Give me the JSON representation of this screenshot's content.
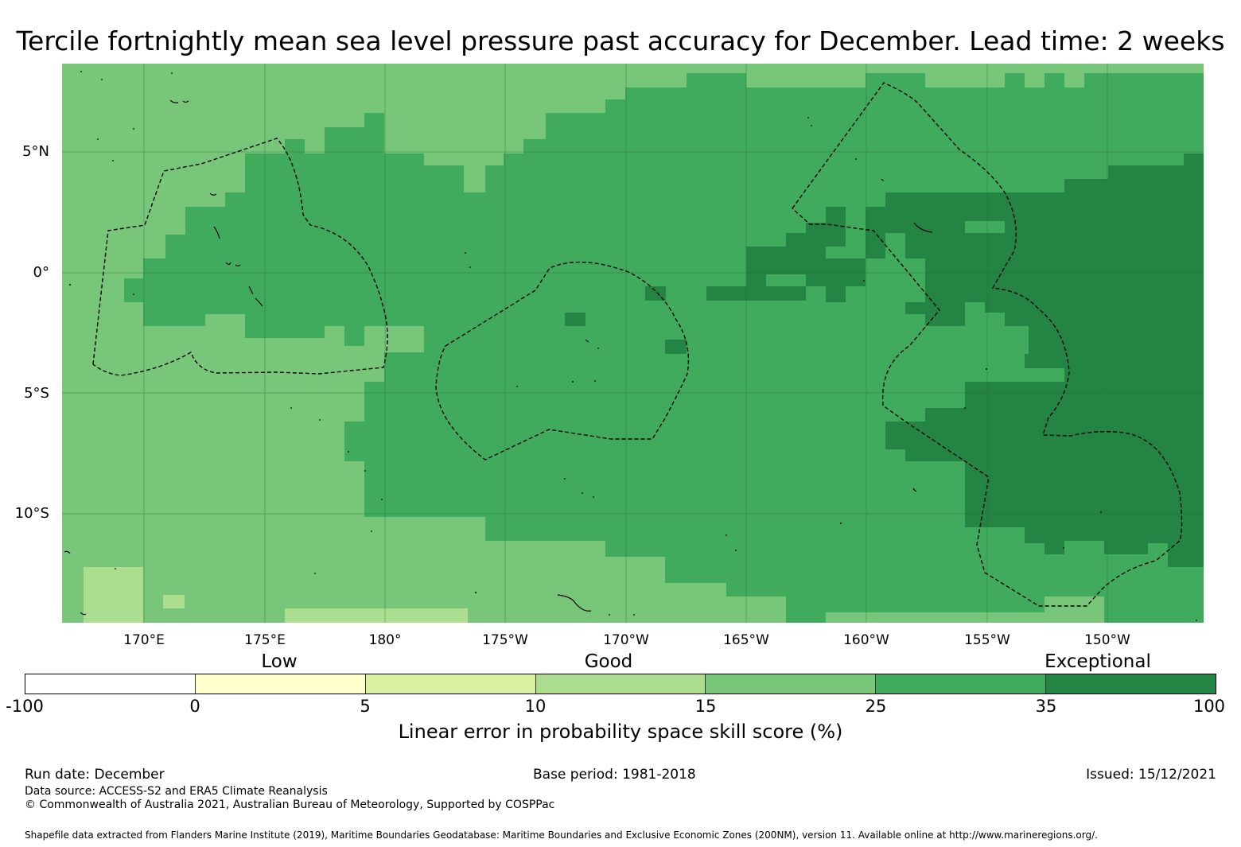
{
  "title": "Tercile fortnightly mean sea level pressure past accuracy for December. Lead time: 2 weeks",
  "map": {
    "lat_labels": [
      "5°N",
      "0°",
      "5°S",
      "10°S"
    ],
    "lon_labels": [
      "170°E",
      "175°E",
      "180°",
      "175°W",
      "170°W",
      "165°W",
      "160°W",
      "155°W",
      "150°W"
    ]
  },
  "colorbar": {
    "category_labels": [
      "Low",
      "Good",
      "Exceptional"
    ],
    "ticks": [
      "-100",
      "0",
      "5",
      "10",
      "15",
      "25",
      "35",
      "100"
    ],
    "colors": [
      "#ffffff",
      "#ffffcc",
      "#d9f0a3",
      "#addd8e",
      "#78c679",
      "#41ab5d",
      "#238443"
    ],
    "label": "Linear error in probability space skill score (%)"
  },
  "footer": {
    "run_date": "Run date: December",
    "base_period": "Base period: 1981-2018",
    "issued": "Issued: 15/12/2021",
    "data_source": "Data source: ACCESS-S2 and ERA5 Climate Reanalysis",
    "copyright": "© Commonwealth of Australia 2021, Australian Bureau of Meteorology, Supported by COSPPac",
    "shapefile": "Shapefile data extracted from Flanders Marine Institute (2019), Maritime Boundaries Geodatabase: Maritime Boundaries and Exclusive Economic Zones (200NM), version 11. Available online at http://www.marineregions.org/."
  }
}
